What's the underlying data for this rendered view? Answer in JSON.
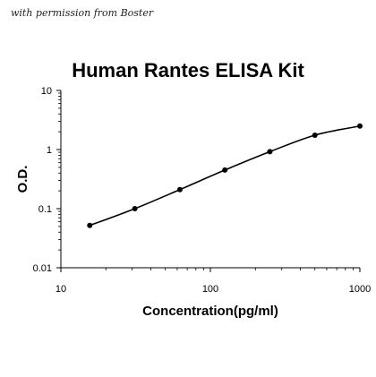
{
  "watermark": "with permission from Boster",
  "chart_data": {
    "type": "line",
    "title": "Human Rantes ELISA Kit",
    "xlabel": "Concentration(pg/ml)",
    "ylabel": "O.D.",
    "x_scale": "log",
    "y_scale": "log",
    "xlim": [
      10,
      1000
    ],
    "ylim": [
      0.01,
      10
    ],
    "x_ticks": [
      10,
      100,
      1000
    ],
    "x_tick_labels": [
      "10",
      "100",
      "1000"
    ],
    "y_ticks": [
      10,
      1,
      0.1,
      0.01
    ],
    "y_tick_labels": [
      "10",
      "1",
      "0.1",
      "0.01"
    ],
    "series": [
      {
        "x": [
          15.6,
          31.25,
          62.5,
          125,
          250,
          500,
          1000
        ],
        "y": [
          0.052,
          0.1,
          0.21,
          0.45,
          0.92,
          1.75,
          2.5
        ]
      }
    ],
    "colors": {
      "line": "#000000",
      "axis": "#000000"
    }
  }
}
